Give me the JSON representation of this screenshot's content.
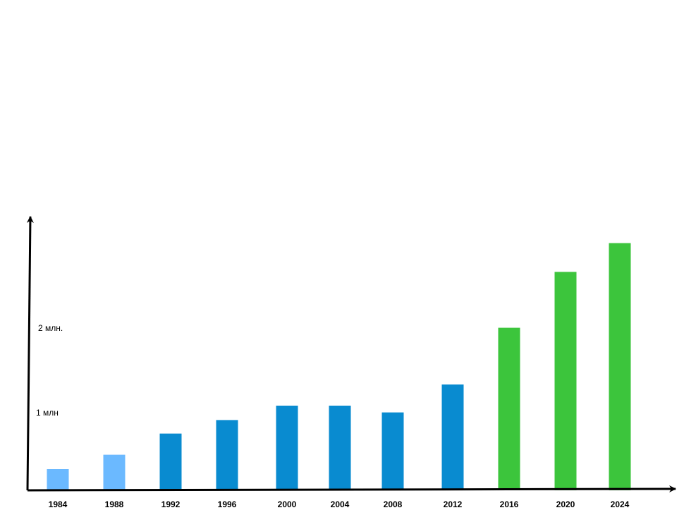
{
  "chart_data": {
    "type": "bar",
    "title": "",
    "xlabel": "",
    "ylabel": "",
    "categories": [
      "1984",
      "1988",
      "1992",
      "1996",
      "2000",
      "2004",
      "2008",
      "2012",
      "2016",
      "2020",
      "2024"
    ],
    "values": [
      0.25,
      0.42,
      0.67,
      0.83,
      1.0,
      1.0,
      0.92,
      1.25,
      1.92,
      2.58,
      2.92
    ],
    "colors": [
      "#6bb9ff",
      "#6bb9ff",
      "#098bd0",
      "#098bd0",
      "#098bd0",
      "#098bd0",
      "#098bd0",
      "#098bd0",
      "#3cc53c",
      "#3cc53c",
      "#3cc53c"
    ],
    "y_ticks": [
      {
        "value": 1,
        "label": "1 млн"
      },
      {
        "value": 2,
        "label": "2 млн."
      }
    ],
    "ylim": [
      0,
      3.25
    ],
    "grid": false,
    "legend": "none"
  }
}
